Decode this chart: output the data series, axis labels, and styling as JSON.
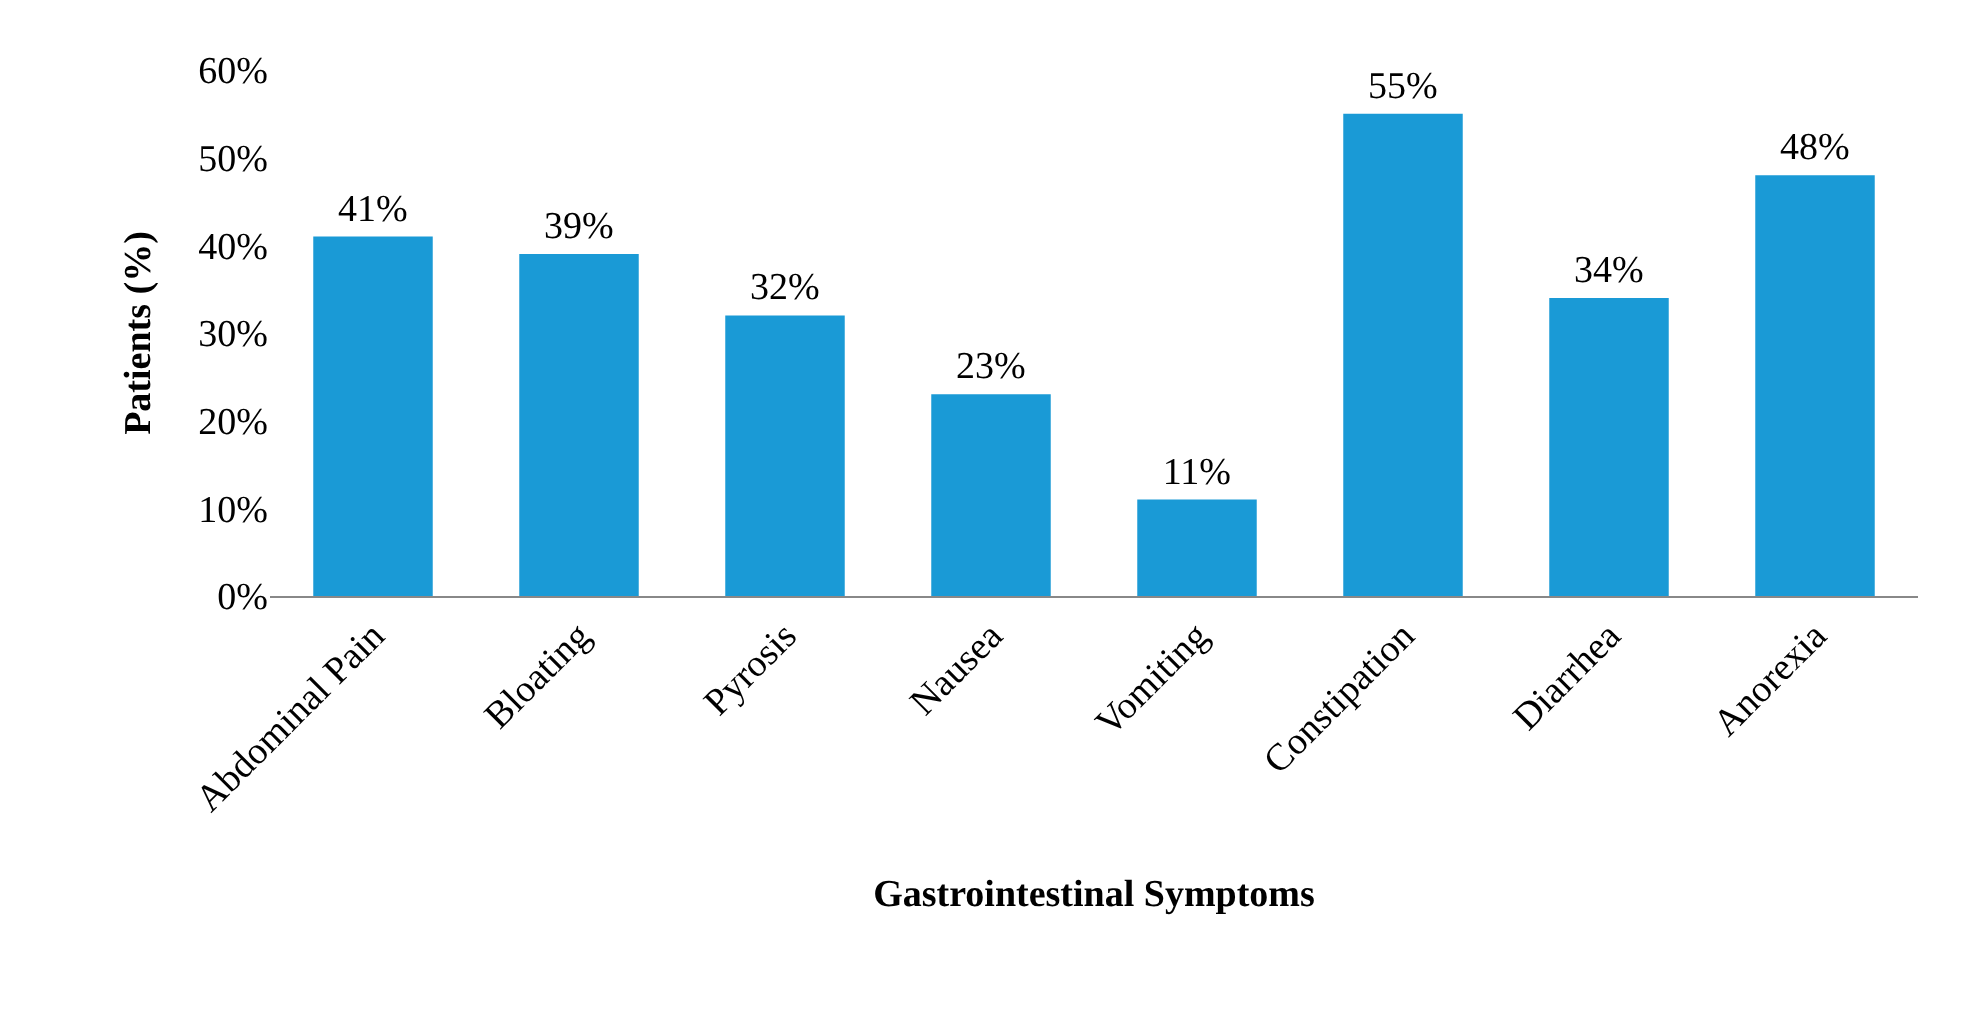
{
  "chart_data": {
    "type": "bar",
    "xlabel": "Gastrointestinal Symptoms",
    "ylabel": "Patients (%)",
    "categories": [
      "Abdominal Pain",
      "Bloating",
      "Pyrosis",
      "Nausea",
      "Vomiting",
      "Constipation",
      "Diarrhea",
      "Anorexia"
    ],
    "values": [
      41,
      39,
      32,
      23,
      11,
      55,
      34,
      48
    ],
    "value_labels": [
      "41%",
      "39%",
      "32%",
      "23%",
      "11%",
      "55%",
      "34%",
      "48%"
    ],
    "color": "#1a9ad6",
    "ylim": [
      0,
      60
    ],
    "yticks": [
      {
        "value": 0,
        "label": "0%"
      },
      {
        "value": 10,
        "label": "10%"
      },
      {
        "value": 20,
        "label": "20%"
      },
      {
        "value": 30,
        "label": "30%"
      },
      {
        "value": 40,
        "label": "40%"
      },
      {
        "value": 50,
        "label": "50%"
      },
      {
        "value": 60,
        "label": "60%"
      }
    ],
    "grid": false,
    "legend": false
  }
}
